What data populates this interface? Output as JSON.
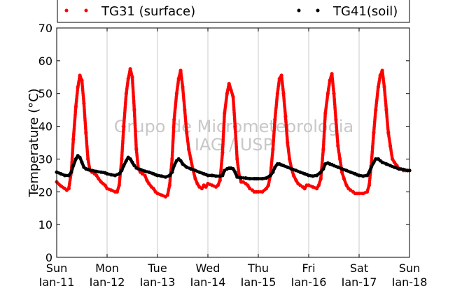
{
  "chart_data": {
    "type": "scatter",
    "ylabel": "Temperature (°C)",
    "ylim": [
      0,
      70
    ],
    "yticks": [
      0,
      10,
      20,
      30,
      40,
      50,
      60,
      70
    ],
    "xlim": [
      "2015-01-11",
      "2015-01-18"
    ],
    "xtick_labels": [
      {
        "day": "Sun",
        "date": "Jan-11"
      },
      {
        "day": "Mon",
        "date": "Jan-12"
      },
      {
        "day": "Tue",
        "date": "Jan-13"
      },
      {
        "day": "Wed",
        "date": "Jan-14"
      },
      {
        "day": "Thu",
        "date": "Jan-15"
      },
      {
        "day": "Fri",
        "date": "Jan-16"
      },
      {
        "day": "Sat",
        "date": "Jan-17"
      },
      {
        "day": "Sun",
        "date": "Jan-18"
      }
    ],
    "grid": "vertical",
    "legend_position": "top",
    "watermark": [
      "Grupo de Micrometeorologia",
      "IAG / USP"
    ],
    "series": [
      {
        "name": "TG31 (surface)",
        "color": "#ff0000",
        "points": [
          [
            0.0,
            23.0
          ],
          [
            0.08,
            21.8
          ],
          [
            0.16,
            21.0
          ],
          [
            0.2,
            20.5
          ],
          [
            0.24,
            21.0
          ],
          [
            0.29,
            26.0
          ],
          [
            0.33,
            36.0
          ],
          [
            0.38,
            46.0
          ],
          [
            0.42,
            52.0
          ],
          [
            0.46,
            55.5
          ],
          [
            0.5,
            54.0
          ],
          [
            0.54,
            47.0
          ],
          [
            0.58,
            38.0
          ],
          [
            0.62,
            30.0
          ],
          [
            0.66,
            26.5
          ],
          [
            0.7,
            26.0
          ],
          [
            0.75,
            25.5
          ],
          [
            0.79,
            25.0
          ],
          [
            0.83,
            24.0
          ],
          [
            0.88,
            23.0
          ],
          [
            0.92,
            22.5
          ],
          [
            0.96,
            22.0
          ],
          [
            1.0,
            21.0
          ],
          [
            1.08,
            20.5
          ],
          [
            1.16,
            20.0
          ],
          [
            1.2,
            20.0
          ],
          [
            1.24,
            22.0
          ],
          [
            1.29,
            30.0
          ],
          [
            1.33,
            40.0
          ],
          [
            1.38,
            50.0
          ],
          [
            1.42,
            54.5
          ],
          [
            1.46,
            57.5
          ],
          [
            1.5,
            55.0
          ],
          [
            1.54,
            45.0
          ],
          [
            1.58,
            33.0
          ],
          [
            1.62,
            27.0
          ],
          [
            1.66,
            26.0
          ],
          [
            1.7,
            25.5
          ],
          [
            1.75,
            25.0
          ],
          [
            1.79,
            23.5
          ],
          [
            1.83,
            22.5
          ],
          [
            1.88,
            21.5
          ],
          [
            1.92,
            21.0
          ],
          [
            1.96,
            20.0
          ],
          [
            2.0,
            19.5
          ],
          [
            2.08,
            19.0
          ],
          [
            2.16,
            18.5
          ],
          [
            2.2,
            19.0
          ],
          [
            2.24,
            22.0
          ],
          [
            2.29,
            30.0
          ],
          [
            2.33,
            42.0
          ],
          [
            2.38,
            50.0
          ],
          [
            2.42,
            54.5
          ],
          [
            2.46,
            57.0
          ],
          [
            2.5,
            52.0
          ],
          [
            2.54,
            45.0
          ],
          [
            2.58,
            38.0
          ],
          [
            2.62,
            33.0
          ],
          [
            2.66,
            30.0
          ],
          [
            2.7,
            27.0
          ],
          [
            2.75,
            24.0
          ],
          [
            2.79,
            22.5
          ],
          [
            2.83,
            21.5
          ],
          [
            2.88,
            21.0
          ],
          [
            2.92,
            22.0
          ],
          [
            2.96,
            21.5
          ],
          [
            3.0,
            22.5
          ],
          [
            3.08,
            22.0
          ],
          [
            3.16,
            21.5
          ],
          [
            3.2,
            22.0
          ],
          [
            3.24,
            23.5
          ],
          [
            3.29,
            32.0
          ],
          [
            3.33,
            44.0
          ],
          [
            3.38,
            50.0
          ],
          [
            3.42,
            53.0
          ],
          [
            3.46,
            51.0
          ],
          [
            3.5,
            49.0
          ],
          [
            3.54,
            40.0
          ],
          [
            3.58,
            30.0
          ],
          [
            3.62,
            25.0
          ],
          [
            3.66,
            23.0
          ],
          [
            3.7,
            23.0
          ],
          [
            3.75,
            22.5
          ],
          [
            3.79,
            22.0
          ],
          [
            3.83,
            21.0
          ],
          [
            3.88,
            20.5
          ],
          [
            3.92,
            20.0
          ],
          [
            3.96,
            20.0
          ],
          [
            4.0,
            20.0
          ],
          [
            4.08,
            20.0
          ],
          [
            4.16,
            21.0
          ],
          [
            4.2,
            22.0
          ],
          [
            4.24,
            25.0
          ],
          [
            4.29,
            33.0
          ],
          [
            4.33,
            42.0
          ],
          [
            4.38,
            50.0
          ],
          [
            4.42,
            54.5
          ],
          [
            4.46,
            55.5
          ],
          [
            4.5,
            50.0
          ],
          [
            4.54,
            43.0
          ],
          [
            4.58,
            35.0
          ],
          [
            4.62,
            30.0
          ],
          [
            4.66,
            27.0
          ],
          [
            4.7,
            25.0
          ],
          [
            4.75,
            23.5
          ],
          [
            4.79,
            22.5
          ],
          [
            4.83,
            22.0
          ],
          [
            4.88,
            21.5
          ],
          [
            4.92,
            21.0
          ],
          [
            4.96,
            22.0
          ],
          [
            5.0,
            22.0
          ],
          [
            5.08,
            21.5
          ],
          [
            5.16,
            21.0
          ],
          [
            5.2,
            22.0
          ],
          [
            5.24,
            24.0
          ],
          [
            5.29,
            33.0
          ],
          [
            5.33,
            44.0
          ],
          [
            5.38,
            50.0
          ],
          [
            5.42,
            54.0
          ],
          [
            5.46,
            56.0
          ],
          [
            5.5,
            50.0
          ],
          [
            5.54,
            42.0
          ],
          [
            5.58,
            34.0
          ],
          [
            5.62,
            30.0
          ],
          [
            5.66,
            26.0
          ],
          [
            5.7,
            24.0
          ],
          [
            5.75,
            22.0
          ],
          [
            5.79,
            21.0
          ],
          [
            5.83,
            20.5
          ],
          [
            5.88,
            20.0
          ],
          [
            5.92,
            19.5
          ],
          [
            5.96,
            19.5
          ],
          [
            6.0,
            19.5
          ],
          [
            6.08,
            19.5
          ],
          [
            6.16,
            20.0
          ],
          [
            6.2,
            22.0
          ],
          [
            6.24,
            28.0
          ],
          [
            6.29,
            38.0
          ],
          [
            6.33,
            45.0
          ],
          [
            6.38,
            52.0
          ],
          [
            6.42,
            55.5
          ],
          [
            6.46,
            57.0
          ],
          [
            6.5,
            52.0
          ],
          [
            6.54,
            45.0
          ],
          [
            6.58,
            38.0
          ],
          [
            6.62,
            34.0
          ],
          [
            6.66,
            30.0
          ],
          [
            6.7,
            29.0
          ],
          [
            6.75,
            28.0
          ],
          [
            6.79,
            27.0
          ],
          [
            6.83,
            27.0
          ],
          [
            6.88,
            26.5
          ],
          [
            6.92,
            26.5
          ],
          [
            6.96,
            26.5
          ],
          [
            7.0,
            26.5
          ]
        ]
      },
      {
        "name": "TG41(soil)",
        "color": "#000000",
        "points": [
          [
            0.0,
            26.0
          ],
          [
            0.08,
            25.5
          ],
          [
            0.16,
            25.0
          ],
          [
            0.24,
            25.0
          ],
          [
            0.29,
            26.0
          ],
          [
            0.33,
            28.0
          ],
          [
            0.38,
            30.0
          ],
          [
            0.42,
            31.0
          ],
          [
            0.46,
            30.5
          ],
          [
            0.5,
            29.0
          ],
          [
            0.54,
            27.5
          ],
          [
            0.58,
            27.0
          ],
          [
            0.62,
            26.8
          ],
          [
            0.7,
            26.5
          ],
          [
            0.79,
            26.2
          ],
          [
            0.88,
            26.0
          ],
          [
            0.96,
            25.8
          ],
          [
            1.0,
            25.5
          ],
          [
            1.08,
            25.2
          ],
          [
            1.16,
            25.0
          ],
          [
            1.24,
            25.5
          ],
          [
            1.29,
            26.5
          ],
          [
            1.33,
            28.0
          ],
          [
            1.38,
            29.5
          ],
          [
            1.42,
            30.5
          ],
          [
            1.46,
            30.0
          ],
          [
            1.5,
            29.0
          ],
          [
            1.54,
            28.0
          ],
          [
            1.58,
            27.3
          ],
          [
            1.66,
            26.8
          ],
          [
            1.75,
            26.3
          ],
          [
            1.83,
            26.0
          ],
          [
            1.92,
            25.5
          ],
          [
            1.96,
            25.2
          ],
          [
            2.0,
            25.0
          ],
          [
            2.08,
            24.8
          ],
          [
            2.16,
            24.5
          ],
          [
            2.24,
            25.0
          ],
          [
            2.29,
            26.0
          ],
          [
            2.33,
            28.0
          ],
          [
            2.38,
            29.5
          ],
          [
            2.42,
            30.0
          ],
          [
            2.46,
            29.5
          ],
          [
            2.5,
            28.5
          ],
          [
            2.58,
            27.5
          ],
          [
            2.66,
            27.0
          ],
          [
            2.75,
            26.5
          ],
          [
            2.83,
            26.0
          ],
          [
            2.92,
            25.5
          ],
          [
            2.96,
            25.3
          ],
          [
            3.0,
            25.0
          ],
          [
            3.08,
            25.0
          ],
          [
            3.16,
            24.8
          ],
          [
            3.24,
            24.8
          ],
          [
            3.29,
            25.0
          ],
          [
            3.33,
            26.5
          ],
          [
            3.38,
            27.0
          ],
          [
            3.42,
            27.2
          ],
          [
            3.46,
            27.2
          ],
          [
            3.5,
            27.0
          ],
          [
            3.54,
            26.0
          ],
          [
            3.58,
            24.5
          ],
          [
            3.66,
            24.3
          ],
          [
            3.75,
            24.2
          ],
          [
            3.83,
            24.0
          ],
          [
            3.92,
            24.0
          ],
          [
            3.96,
            24.0
          ],
          [
            4.0,
            24.0
          ],
          [
            4.08,
            24.0
          ],
          [
            4.16,
            24.2
          ],
          [
            4.24,
            25.0
          ],
          [
            4.29,
            26.0
          ],
          [
            4.33,
            27.5
          ],
          [
            4.38,
            28.5
          ],
          [
            4.42,
            28.5
          ],
          [
            4.46,
            28.2
          ],
          [
            4.5,
            28.0
          ],
          [
            4.58,
            27.5
          ],
          [
            4.66,
            27.0
          ],
          [
            4.75,
            26.5
          ],
          [
            4.83,
            26.0
          ],
          [
            4.92,
            25.5
          ],
          [
            4.96,
            25.3
          ],
          [
            5.0,
            25.0
          ],
          [
            5.08,
            24.8
          ],
          [
            5.16,
            25.0
          ],
          [
            5.24,
            26.0
          ],
          [
            5.29,
            27.0
          ],
          [
            5.33,
            28.5
          ],
          [
            5.38,
            28.8
          ],
          [
            5.42,
            28.5
          ],
          [
            5.46,
            28.3
          ],
          [
            5.5,
            28.0
          ],
          [
            5.58,
            27.5
          ],
          [
            5.66,
            27.0
          ],
          [
            5.75,
            26.5
          ],
          [
            5.83,
            26.0
          ],
          [
            5.92,
            25.5
          ],
          [
            5.96,
            25.2
          ],
          [
            6.0,
            25.0
          ],
          [
            6.08,
            24.8
          ],
          [
            6.16,
            25.0
          ],
          [
            6.2,
            26.0
          ],
          [
            6.24,
            27.5
          ],
          [
            6.29,
            29.0
          ],
          [
            6.33,
            30.0
          ],
          [
            6.38,
            30.0
          ],
          [
            6.42,
            29.5
          ],
          [
            6.46,
            29.0
          ],
          [
            6.54,
            28.5
          ],
          [
            6.62,
            28.0
          ],
          [
            6.7,
            27.5
          ],
          [
            6.79,
            27.0
          ],
          [
            6.88,
            26.8
          ],
          [
            6.96,
            26.5
          ],
          [
            7.0,
            26.5
          ]
        ]
      }
    ]
  }
}
